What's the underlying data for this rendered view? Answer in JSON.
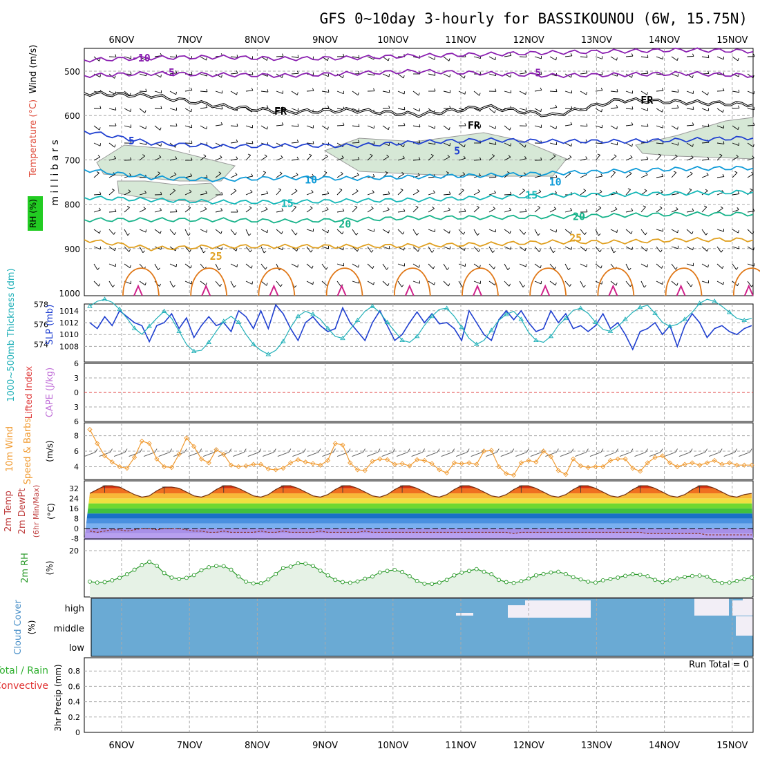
{
  "title": "GFS 0~10day 3-hourly for BASSIKOUNOU (6W, 15.75N)",
  "dates": [
    "6NOV",
    "7NOV",
    "8NOV",
    "9NOV",
    "10NOV",
    "11NOV",
    "12NOV",
    "13NOV",
    "14NOV",
    "15NOV"
  ],
  "colors": {
    "purple": "#8a1fb0",
    "black": "#000000",
    "blue": "#1f3fd0",
    "sky": "#0f9bd8",
    "teal": "#14b7b7",
    "green_teal": "#17b38a",
    "orange": "#e0a020",
    "dark_orange": "#e07818",
    "magenta": "#d0208a",
    "rh_fill": "#d6e8d6",
    "grid": "#aaaaaa",
    "cloud": "#6aaad4",
    "cloud_gap": "#f2eef6",
    "dewpt": "#b070e8",
    "wind10": "#f09a30",
    "rh2m": "#2a9a2a",
    "slp": "#1f3fd0",
    "thick": "#20b0b8"
  },
  "chart_data": [
    {
      "name": "upper",
      "type": "line",
      "ylabel": "millibars",
      "side_labels": {
        "rh": "RH (%)",
        "temp": "Temperature (°C)",
        "wind": "Wind (m/s)"
      },
      "yticks": [
        500,
        600,
        700,
        800,
        900,
        1000
      ],
      "ylim": [
        445,
        1000
      ],
      "isotherms": [
        {
          "label": "-10",
          "color": "purple",
          "p": [
            475,
            470,
            468,
            472,
            470,
            465,
            462,
            458,
            455,
            452,
            455
          ]
        },
        {
          "label": "-5",
          "color": "purple",
          "p": [
            510,
            505,
            508,
            510,
            505,
            500,
            505,
            510,
            508,
            505,
            510
          ]
        },
        {
          "label": "FR",
          "color": "black",
          "p": [
            550,
            555,
            578,
            592,
            588,
            598,
            580,
            600,
            565,
            570,
            575
          ]
        },
        {
          "label": "5",
          "color": "blue",
          "p": [
            635,
            662,
            670,
            668,
            668,
            660,
            655,
            658,
            658,
            655,
            650
          ]
        },
        {
          "label": "10",
          "color": "sky",
          "p": [
            722,
            740,
            745,
            740,
            742,
            738,
            735,
            730,
            725,
            720,
            718
          ]
        },
        {
          "label": "15",
          "color": "teal",
          "p": [
            785,
            790,
            795,
            795,
            792,
            790,
            785,
            780,
            778,
            775,
            772
          ]
        },
        {
          "label": "20",
          "color": "green_teal",
          "p": [
            835,
            835,
            835,
            838,
            835,
            830,
            830,
            828,
            825,
            822,
            822
          ]
        },
        {
          "label": "25",
          "color": "orange",
          "p": [
            880,
            900,
            895,
            895,
            895,
            893,
            890,
            885,
            885,
            880,
            880
          ]
        }
      ],
      "labels": [
        {
          "text": "-10",
          "color": "purple",
          "d": 0.15,
          "p": 478
        },
        {
          "text": "-5",
          "color": "purple",
          "d": 0.6,
          "p": 511
        },
        {
          "text": "-5",
          "color": "purple",
          "d": 6.0,
          "p": 512
        },
        {
          "text": "FR",
          "color": "black",
          "d": 2.25,
          "p": 598
        },
        {
          "text": "FR",
          "color": "black",
          "d": 5.1,
          "p": 630
        },
        {
          "text": "FR",
          "color": "black",
          "d": 7.65,
          "p": 573
        },
        {
          "text": "5",
          "color": "blue",
          "d": 0.1,
          "p": 665
        },
        {
          "text": "5",
          "color": "blue",
          "d": 4.9,
          "p": 688
        },
        {
          "text": "10",
          "color": "sky",
          "d": 2.7,
          "p": 753
        },
        {
          "text": "10",
          "color": "sky",
          "d": 6.3,
          "p": 758
        },
        {
          "text": "15",
          "color": "teal",
          "d": 2.35,
          "p": 806
        },
        {
          "text": "15",
          "color": "teal",
          "d": 5.95,
          "p": 787
        },
        {
          "text": "20",
          "color": "green_teal",
          "d": 3.2,
          "p": 853
        },
        {
          "text": "20",
          "color": "green_teal",
          "d": 6.65,
          "p": 836
        },
        {
          "text": "25",
          "color": "orange",
          "d": 6.6,
          "p": 884
        },
        {
          "text": "25",
          "color": "orange",
          "d": 1.3,
          "p": 925
        }
      ]
    },
    {
      "name": "slp_thickness",
      "type": "line",
      "left_label": "1000~500mb Thickness (dm)",
      "right_label": "SLP (mb)",
      "left_ticks": [
        574,
        576,
        578
      ],
      "right_ticks": [
        1008,
        1010,
        1012,
        1014
      ],
      "slp": [
        1012.0,
        1011.0,
        1013.0,
        1011.5,
        1014.0,
        1013.0,
        1012.0,
        1011.5,
        1008.8,
        1011.5,
        1012.0,
        1013.5,
        1011.0,
        1012.8,
        1009.5,
        1011.5,
        1013.0,
        1011.5,
        1012.0,
        1010.5,
        1014.0,
        1013.0,
        1011.0,
        1014.0,
        1011.0,
        1015.0,
        1013.5,
        1011.0,
        1009.0,
        1012.0,
        1013.0,
        1011.5,
        1010.5,
        1011.0,
        1014.5,
        1012.0,
        1010.5,
        1009.0,
        1012.0,
        1014.0,
        1011.5,
        1009.0,
        1010.0,
        1012.0,
        1013.8,
        1012.0,
        1013.5,
        1011.8,
        1012.0,
        1011.0,
        1009.0,
        1014.0,
        1012.0,
        1010.0,
        1009.0,
        1012.5,
        1014.0,
        1012.5,
        1014.0,
        1012.0,
        1010.5,
        1011.0,
        1014.0,
        1012.0,
        1013.5,
        1011.0,
        1011.5,
        1010.5,
        1011.5,
        1013.5,
        1011.0,
        1012.0,
        1010.0,
        1007.5,
        1010.5,
        1011.0,
        1012.0,
        1010.0,
        1011.5,
        1008.0,
        1011.5,
        1013.5,
        1012.0,
        1009.5,
        1011.0,
        1011.5,
        1010.5,
        1010.0,
        1011.0,
        1011.5
      ],
      "thickness": [
        577.8,
        578.3,
        578.5,
        578.2,
        577.5,
        576.6,
        575.6,
        575.0,
        575.8,
        576.6,
        577.3,
        576.6,
        575.3,
        574.0,
        573.3,
        573.4,
        574.2,
        575.3,
        576.3,
        576.8,
        576.2,
        575.0,
        574.0,
        573.4,
        573.0,
        573.4,
        574.3,
        575.7,
        576.8,
        577.3,
        577.0,
        576.5,
        575.6,
        574.8,
        574.6,
        575.5,
        576.4,
        577.3,
        577.8,
        577.2,
        576.2,
        575.3,
        574.4,
        574.2,
        574.8,
        575.9,
        576.8,
        577.5,
        577.6,
        576.8,
        575.7,
        574.6,
        574.0,
        574.4,
        575.4,
        576.4,
        577.0,
        577.3,
        576.5,
        575.2,
        574.4,
        574.2,
        574.8,
        575.9,
        576.6,
        577.4,
        577.6,
        577.1,
        576.2,
        575.5,
        575.3,
        575.8,
        576.5,
        577.2,
        577.7,
        577.9,
        577.1,
        576.2,
        575.8,
        576.0,
        576.5,
        577.2,
        578.1,
        578.5,
        578.3,
        577.8,
        577.2,
        576.6,
        576.4,
        576.6
      ]
    },
    {
      "name": "cape",
      "type": "line",
      "left_label": "Lifted Index",
      "right_label": "CAPE (J/kg)",
      "yticks": [
        -6,
        -3,
        0,
        3,
        6
      ],
      "tick_labels": [
        "6",
        "3",
        "0",
        "3",
        "6"
      ],
      "lifted_index": "0"
    },
    {
      "name": "wind10m",
      "type": "line",
      "left_label": "10m Wind Speed & Barbs",
      "ylabel": "(m/s)",
      "yticks": [
        4,
        6,
        8
      ],
      "ylim": [
        2.7,
        9
      ],
      "values": [
        8.8,
        7.0,
        5.4,
        4.6,
        4.0,
        3.8,
        5.2,
        7.3,
        7.0,
        5.0,
        4.0,
        3.9,
        5.6,
        7.7,
        6.6,
        5.0,
        4.5,
        6.2,
        5.6,
        4.2,
        4.0,
        4.1,
        4.3,
        4.3,
        3.7,
        3.6,
        3.8,
        4.5,
        4.9,
        4.6,
        4.4,
        4.2,
        4.8,
        7.0,
        6.8,
        4.5,
        3.6,
        3.5,
        4.7,
        5.0,
        4.9,
        4.3,
        4.4,
        4.1,
        4.9,
        4.8,
        4.4,
        3.6,
        3.2,
        4.5,
        4.4,
        4.5,
        4.3,
        6.0,
        6.1,
        4.0,
        3.1,
        2.9,
        4.5,
        4.8,
        4.6,
        6.0,
        5.3,
        3.5,
        3.0,
        5.0,
        4.1,
        3.9,
        4.0,
        4.0,
        4.8,
        5.0,
        5.0,
        3.8,
        3.4,
        4.5,
        5.2,
        5.4,
        4.5,
        4.0,
        4.3,
        4.5,
        4.2,
        4.5,
        4.8,
        4.3,
        4.5,
        4.2,
        4.2,
        4.2
      ]
    },
    {
      "name": "temp2m",
      "type": "area",
      "left_label": "2m Temp 2m DewPt (6hr Min/Max)",
      "ylabel": "(°C)",
      "yticks": [
        -8,
        0,
        8,
        16,
        24,
        32
      ],
      "ylim": [
        -9,
        38
      ],
      "temp": [
        28,
        31,
        34,
        34,
        33,
        30,
        27,
        25,
        26,
        30,
        33,
        33,
        32,
        29,
        26,
        25,
        27,
        31,
        34,
        34,
        32,
        29,
        26,
        25,
        27,
        31,
        34,
        34,
        32,
        29,
        26,
        25,
        27,
        31,
        34,
        34,
        32,
        29,
        26,
        25,
        27,
        31,
        34,
        34,
        32,
        29,
        26,
        25,
        27,
        31,
        34,
        34,
        32,
        29,
        26,
        25,
        27,
        31,
        34,
        34,
        32,
        29,
        26,
        25,
        27,
        31,
        34,
        34,
        32,
        29,
        26,
        25,
        27,
        31,
        34,
        34,
        32,
        29,
        26,
        25,
        27,
        31,
        34,
        34,
        32,
        29,
        26,
        25,
        27,
        28
      ],
      "dewpt": [
        -2,
        -3,
        -2,
        -1,
        -1,
        -2,
        -1,
        0,
        0,
        -1,
        0,
        0,
        0,
        -1,
        -2,
        -2,
        -3,
        -3,
        -2,
        -3,
        -3,
        -3,
        -3,
        -2,
        -3,
        -3,
        -2,
        -3,
        -3,
        -3,
        -3,
        -2,
        -3,
        -3,
        -3,
        -3,
        -3,
        -2,
        -3,
        -3,
        -3,
        -3,
        -3,
        -3,
        -3,
        -3,
        -3,
        -3,
        -3,
        -3,
        -3,
        -3,
        -3,
        -3,
        -3,
        -3,
        -3,
        -4,
        -3,
        -3,
        -3,
        -3,
        -3,
        -3,
        -3,
        -3,
        -3,
        -3,
        -3,
        -3,
        -3,
        -3,
        -3,
        -3,
        -3,
        -4,
        -4,
        -4,
        -4,
        -4,
        -4,
        -4,
        -4,
        -5,
        -5,
        -5,
        -5,
        -5,
        -5,
        -5
      ],
      "bands": [
        {
          "from": -9,
          "to": -4,
          "color": "#b8a0f0"
        },
        {
          "from": -4,
          "to": 0,
          "color": "#a890e8"
        },
        {
          "from": 0,
          "to": 4,
          "color": "#7ab0f0"
        },
        {
          "from": 4,
          "to": 8,
          "color": "#4a90e0"
        },
        {
          "from": 8,
          "to": 12,
          "color": "#1870c8"
        },
        {
          "from": 12,
          "to": 16,
          "color": "#40c040"
        },
        {
          "from": 16,
          "to": 20,
          "color": "#70d830"
        },
        {
          "from": 20,
          "to": 24,
          "color": "#f0e040"
        },
        {
          "from": 24,
          "to": 28,
          "color": "#f8b838"
        },
        {
          "from": 28,
          "to": 32,
          "color": "#f07020"
        },
        {
          "from": 32,
          "to": 38,
          "color": "#d83010"
        }
      ]
    },
    {
      "name": "rh2m",
      "type": "area",
      "left_label": "2m RH",
      "ylabel": "(%)",
      "yticks": [
        20
      ],
      "ylim": [
        0,
        25
      ],
      "values": [
        6.2,
        5.8,
        6.0,
        6.8,
        7.9,
        9.5,
        11.5,
        13.6,
        15.0,
        13.3,
        10.0,
        8.0,
        7.4,
        7.9,
        9.1,
        11.3,
        12.6,
        13.2,
        13.1,
        11.5,
        8.5,
        6.2,
        5.4,
        5.5,
        7.2,
        9.6,
        12.3,
        12.9,
        14.4,
        14.2,
        13.2,
        11.1,
        9.0,
        7.0,
        6.0,
        5.7,
        6.3,
        7.5,
        8.5,
        10.3,
        11.0,
        11.4,
        10.5,
        8.6,
        6.5,
        5.3,
        5.2,
        5.8,
        7.0,
        9.0,
        10.2,
        11.0,
        11.8,
        10.6,
        9.5,
        7.0,
        6.0,
        5.6,
        6.4,
        7.6,
        9.0,
        9.6,
        10.3,
        10.6,
        9.6,
        8.2,
        7.2,
        6.2,
        5.8,
        6.8,
        7.4,
        8.0,
        8.8,
        9.5,
        9.3,
        8.6,
        7.0,
        6.0,
        6.8,
        7.6,
        8.3,
        8.7,
        8.9,
        8.4,
        6.5,
        5.6,
        5.8,
        6.5,
        7.3,
        8.0
      ]
    },
    {
      "name": "cloud",
      "type": "heatmap",
      "left_label": "Cloud Cover",
      "ylabel": "(%)",
      "levels": [
        "high",
        "middle",
        "low"
      ]
    },
    {
      "name": "precip",
      "type": "bar",
      "left_label_a": "Total / Rain",
      "left_label_b": "Convective",
      "ylabel": "3hr Precip (mm)",
      "yticks": [
        0,
        0.2,
        0.4,
        0.6,
        0.8
      ],
      "tick_labels": [
        "0",
        "0.2",
        "0.4",
        "0.6",
        "0.8"
      ],
      "ylim": [
        0,
        1
      ],
      "run_total": "Run Total = 0"
    }
  ]
}
